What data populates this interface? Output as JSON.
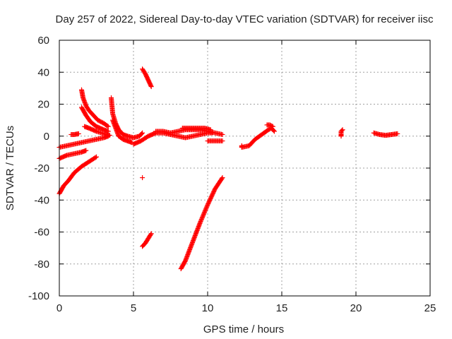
{
  "chart_data": {
    "type": "scatter",
    "title": "Day 257 of 2022, Sidereal Day-to-day VTEC variation (SDTVAR) for receiver iisc",
    "xlabel": "GPS time / hours",
    "ylabel": "SDTVAR / TECUs",
    "xlim": [
      0,
      25
    ],
    "ylim": [
      -100,
      60
    ],
    "xticks": [
      0,
      5,
      10,
      15,
      20,
      25
    ],
    "yticks": [
      -100,
      -80,
      -60,
      -40,
      -20,
      0,
      20,
      40,
      60
    ],
    "grid": true,
    "legend": "none",
    "marker": "+",
    "color": "#ff0000",
    "segments": [
      {
        "name": "arc-a",
        "points": [
          [
            0.0,
            -36
          ],
          [
            0.3,
            -31
          ],
          [
            0.6,
            -28
          ],
          [
            1.0,
            -23
          ],
          [
            1.5,
            -19
          ],
          [
            2.0,
            -16
          ],
          [
            2.5,
            -13
          ]
        ]
      },
      {
        "name": "arc-b",
        "points": [
          [
            0.0,
            -14
          ],
          [
            0.5,
            -12
          ],
          [
            1.0,
            -11
          ],
          [
            1.5,
            -10
          ],
          [
            1.8,
            -9
          ]
        ]
      },
      {
        "name": "arc-c",
        "points": [
          [
            0.0,
            -7
          ],
          [
            0.5,
            -6
          ],
          [
            1.0,
            -5
          ],
          [
            1.5,
            -4
          ],
          [
            2.0,
            -3
          ],
          [
            2.5,
            -2
          ],
          [
            3.0,
            -1
          ],
          [
            3.3,
            0
          ]
        ]
      },
      {
        "name": "arc-d",
        "points": [
          [
            0.8,
            1
          ],
          [
            1.0,
            1
          ],
          [
            1.3,
            1.5
          ]
        ]
      },
      {
        "name": "arc-e",
        "points": [
          [
            1.5,
            29
          ],
          [
            1.6,
            24
          ],
          [
            1.8,
            19
          ],
          [
            2.0,
            16
          ],
          [
            2.3,
            13
          ],
          [
            2.6,
            10
          ],
          [
            3.0,
            8
          ],
          [
            3.3,
            6
          ]
        ]
      },
      {
        "name": "arc-f",
        "points": [
          [
            1.5,
            18
          ],
          [
            1.8,
            13
          ],
          [
            2.1,
            9
          ],
          [
            2.5,
            6
          ],
          [
            3.0,
            4
          ],
          [
            3.3,
            3
          ]
        ]
      },
      {
        "name": "arc-g",
        "points": [
          [
            1.7,
            6
          ],
          [
            2.0,
            5
          ],
          [
            2.5,
            3
          ],
          [
            3.0,
            1.5
          ],
          [
            3.4,
            0.5
          ]
        ]
      },
      {
        "name": "arc-h",
        "points": [
          [
            3.5,
            24
          ],
          [
            3.6,
            14
          ],
          [
            3.8,
            8
          ],
          [
            4.0,
            4
          ],
          [
            4.3,
            1
          ],
          [
            4.6,
            0
          ],
          [
            5.0,
            -1
          ],
          [
            5.4,
            0
          ],
          [
            5.6,
            2
          ]
        ]
      },
      {
        "name": "arc-i",
        "points": [
          [
            3.6,
            10
          ],
          [
            3.8,
            5
          ],
          [
            4.0,
            0
          ],
          [
            4.3,
            -2
          ],
          [
            4.6,
            -3
          ],
          [
            4.9,
            -4
          ]
        ]
      },
      {
        "name": "arc-j",
        "points": [
          [
            5.0,
            -5
          ],
          [
            5.5,
            -3
          ],
          [
            6.0,
            0
          ],
          [
            6.5,
            2
          ],
          [
            7.0,
            2
          ],
          [
            7.5,
            1
          ],
          [
            8.0,
            0
          ],
          [
            8.5,
            -1
          ],
          [
            9.0,
            0
          ],
          [
            9.5,
            1
          ],
          [
            10.0,
            2
          ],
          [
            10.3,
            2
          ]
        ]
      },
      {
        "name": "arc-k",
        "points": [
          [
            6.5,
            3
          ],
          [
            7.0,
            3
          ],
          [
            7.5,
            2
          ],
          [
            8.0,
            3
          ],
          [
            8.5,
            4
          ],
          [
            9.0,
            4
          ],
          [
            9.5,
            4
          ],
          [
            10.0,
            3
          ],
          [
            10.5,
            2
          ],
          [
            11.0,
            1
          ]
        ]
      },
      {
        "name": "arc-l",
        "points": [
          [
            8.3,
            5
          ],
          [
            8.8,
            5
          ],
          [
            9.3,
            5
          ],
          [
            9.8,
            5
          ],
          [
            10.2,
            4
          ]
        ]
      },
      {
        "name": "arc-m",
        "points": [
          [
            10.0,
            -3
          ],
          [
            10.5,
            -3
          ],
          [
            11.0,
            -3
          ]
        ]
      },
      {
        "name": "arc-n",
        "points": [
          [
            5.6,
            42
          ],
          [
            5.8,
            39
          ],
          [
            6.0,
            35
          ],
          [
            6.2,
            31
          ]
        ]
      },
      {
        "name": "arc-o",
        "points": [
          [
            5.6,
            -26
          ]
        ]
      },
      {
        "name": "arc-p",
        "points": [
          [
            5.6,
            -69
          ],
          [
            5.8,
            -67
          ],
          [
            6.0,
            -64
          ],
          [
            6.2,
            -61
          ]
        ]
      },
      {
        "name": "arc-q",
        "points": [
          [
            8.2,
            -83
          ],
          [
            8.5,
            -78
          ],
          [
            9.0,
            -66
          ],
          [
            9.5,
            -54
          ],
          [
            10.0,
            -43
          ],
          [
            10.5,
            -33
          ],
          [
            11.0,
            -26
          ]
        ]
      },
      {
        "name": "arc-r",
        "points": [
          [
            12.3,
            -6
          ],
          [
            12.3,
            -7
          ],
          [
            12.8,
            -6
          ],
          [
            13.0,
            -4
          ],
          [
            13.2,
            -2
          ],
          [
            13.5,
            0
          ],
          [
            13.8,
            2
          ],
          [
            14.1,
            4
          ],
          [
            14.3,
            5
          ],
          [
            14.5,
            3
          ]
        ]
      },
      {
        "name": "arc-s",
        "points": [
          [
            14.0,
            7
          ],
          [
            14.2,
            7
          ],
          [
            14.4,
            6
          ]
        ]
      },
      {
        "name": "arc-t",
        "points": [
          [
            19.0,
            0
          ],
          [
            19.0,
            1
          ],
          [
            19.0,
            3
          ],
          [
            19.1,
            4
          ]
        ]
      },
      {
        "name": "arc-u",
        "points": [
          [
            21.2,
            2
          ],
          [
            21.6,
            1
          ],
          [
            22.0,
            0.5
          ],
          [
            22.4,
            1
          ],
          [
            22.8,
            1.5
          ]
        ]
      }
    ]
  }
}
